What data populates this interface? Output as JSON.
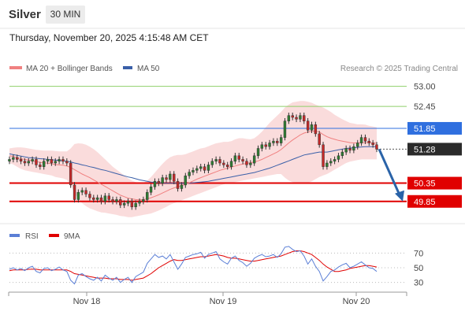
{
  "header": {
    "instrument": "Silver",
    "timeframe": "30 MIN",
    "timestamp": "Thursday, November 20, 2025 4:15:48 AM CET"
  },
  "legend": {
    "ma20_label": "MA 20 + Bollinger Bands",
    "ma50_label": "MA 50",
    "credit": "Research © 2025 Trading Central",
    "rsi_label": "RSI",
    "rsi_ma_label": "9MA"
  },
  "colors": {
    "ma20": "#f08080",
    "ma50": "#3a5fa8",
    "band_fill": "#fadcdc",
    "bull": "#2e7d32",
    "bear": "#c62828",
    "green_level": "#8fcf6a",
    "blue_level": "#2f6fdf",
    "red_level": "#e00000",
    "last_price": "#2b2b2b",
    "rsi": "#5b7fd6",
    "rsi_ma": "#e00000",
    "arrow": "#2a63a8"
  },
  "chart_data": {
    "type": "candlestick",
    "y_range": [
      49.5,
      53.25
    ],
    "x_axis": {
      "tick_labels": [
        "Nov 18",
        "Nov 19",
        "Nov 20"
      ]
    },
    "price_levels": [
      {
        "value": 53.0,
        "label": "53.00",
        "style": "green-line"
      },
      {
        "value": 52.45,
        "label": "52.45",
        "style": "green-line"
      },
      {
        "value": 51.85,
        "label": "51.85",
        "style": "blue-tag"
      },
      {
        "value": 51.28,
        "label": "51.28",
        "style": "last-price-tag"
      },
      {
        "value": 50.35,
        "label": "50.35",
        "style": "red-tag"
      },
      {
        "value": 49.85,
        "label": "49.85",
        "style": "red-tag"
      }
    ],
    "close_series": [
      51.0,
      51.05,
      51.0,
      50.95,
      50.9,
      50.95,
      51.0,
      50.85,
      50.8,
      50.95,
      51.0,
      50.9,
      50.95,
      51.0,
      50.95,
      50.9,
      50.3,
      49.9,
      50.1,
      50.15,
      50.05,
      49.95,
      49.9,
      49.95,
      49.85,
      50.0,
      49.9,
      49.85,
      49.9,
      49.75,
      49.8,
      49.85,
      49.7,
      49.8,
      49.85,
      49.9,
      50.1,
      50.25,
      50.4,
      50.35,
      50.5,
      50.45,
      50.6,
      50.4,
      50.2,
      50.3,
      50.55,
      50.65,
      50.7,
      50.75,
      50.8,
      50.7,
      50.85,
      50.95,
      51.0,
      50.9,
      50.85,
      50.8,
      50.95,
      51.1,
      51.0,
      50.95,
      50.85,
      50.9,
      51.1,
      51.3,
      51.4,
      51.35,
      51.45,
      51.5,
      51.45,
      51.6,
      52.05,
      52.2,
      52.15,
      52.1,
      52.2,
      52.05,
      51.8,
      51.95,
      51.7,
      51.4,
      50.8,
      50.9,
      50.95,
      51.0,
      51.1,
      51.2,
      51.3,
      51.25,
      51.35,
      51.45,
      51.6,
      51.5,
      51.45,
      51.4,
      51.28
    ],
    "ma20_series": [
      51.1,
      51.08,
      51.05,
      51.02,
      51.0,
      50.98,
      50.96,
      50.94,
      50.92,
      50.9,
      50.9,
      50.88,
      50.86,
      50.85,
      50.84,
      50.82,
      50.78,
      50.72,
      50.66,
      50.6,
      50.55,
      50.5,
      50.44,
      50.38,
      50.32,
      50.26,
      50.2,
      50.14,
      50.08,
      50.02,
      49.98,
      49.94,
      49.92,
      49.9,
      49.89,
      49.9,
      49.92,
      49.95,
      49.99,
      50.03,
      50.08,
      50.13,
      50.18,
      50.22,
      50.25,
      50.28,
      50.32,
      50.36,
      50.41,
      50.46,
      50.5,
      50.54,
      50.58,
      50.62,
      50.66,
      50.7,
      50.73,
      50.76,
      50.79,
      50.82,
      50.85,
      50.87,
      50.89,
      50.91,
      50.93,
      50.96,
      51.0,
      51.05,
      51.1,
      51.15,
      51.2,
      51.27,
      51.36,
      51.45,
      51.53,
      51.6,
      51.67,
      51.72,
      51.75,
      51.77,
      51.78,
      51.75,
      51.68,
      51.62,
      51.58,
      51.55,
      51.52,
      51.5,
      51.48,
      51.46,
      51.45,
      51.45,
      51.46,
      51.46,
      51.46,
      51.45,
      51.44
    ],
    "band_upper": [
      51.3,
      51.32,
      51.33,
      51.33,
      51.32,
      51.3,
      51.28,
      51.26,
      51.25,
      51.24,
      51.24,
      51.24,
      51.23,
      51.22,
      51.22,
      51.22,
      51.3,
      51.42,
      51.44,
      51.43,
      51.4,
      51.35,
      51.28,
      51.2,
      51.1,
      51.0,
      50.9,
      50.8,
      50.72,
      50.64,
      50.56,
      50.48,
      50.42,
      50.38,
      50.36,
      50.36,
      50.42,
      50.52,
      50.64,
      50.76,
      50.88,
      50.98,
      51.06,
      51.1,
      51.12,
      51.12,
      51.14,
      51.18,
      51.22,
      51.26,
      51.3,
      51.32,
      51.36,
      51.4,
      51.44,
      51.46,
      51.48,
      51.48,
      51.5,
      51.55,
      51.58,
      51.58,
      51.56,
      51.55,
      51.58,
      51.66,
      51.76,
      51.88,
      52.0,
      52.1,
      52.2,
      52.3,
      52.42,
      52.5,
      52.56,
      52.58,
      52.6,
      52.6,
      52.58,
      52.55,
      52.5,
      52.46,
      52.42,
      52.36,
      52.3,
      52.22,
      52.16,
      52.1,
      52.05,
      52.0,
      51.98,
      51.96,
      51.96,
      51.95,
      51.92,
      51.9,
      51.88
    ],
    "band_lower": [
      50.9,
      50.86,
      50.8,
      50.74,
      50.7,
      50.68,
      50.66,
      50.64,
      50.62,
      50.6,
      50.58,
      50.56,
      50.52,
      50.5,
      50.48,
      50.44,
      50.3,
      50.08,
      49.92,
      49.8,
      49.72,
      49.66,
      49.62,
      49.58,
      49.55,
      49.54,
      49.52,
      49.5,
      49.48,
      49.45,
      49.44,
      49.42,
      49.42,
      49.44,
      49.46,
      49.48,
      49.5,
      49.52,
      49.56,
      49.6,
      49.65,
      49.7,
      49.76,
      49.8,
      49.84,
      49.88,
      49.92,
      49.96,
      50.0,
      50.04,
      50.08,
      50.12,
      50.16,
      50.2,
      50.24,
      50.28,
      50.32,
      50.34,
      50.36,
      50.38,
      50.4,
      50.42,
      50.44,
      50.46,
      50.48,
      50.5,
      50.52,
      50.54,
      50.56,
      50.58,
      50.6,
      50.6,
      50.5,
      50.42,
      50.38,
      50.36,
      50.34,
      50.34,
      50.36,
      50.4,
      50.46,
      50.52,
      50.56,
      50.6,
      50.66,
      50.72,
      50.78,
      50.84,
      50.9,
      50.94,
      50.96,
      50.98,
      51.0,
      51.0,
      51.0,
      51.0,
      51.0
    ],
    "ma50_series": [
      51.15,
      51.13,
      51.11,
      51.09,
      51.07,
      51.05,
      51.04,
      51.03,
      51.02,
      51.01,
      51.0,
      50.99,
      50.98,
      50.97,
      50.96,
      50.95,
      50.93,
      50.9,
      50.88,
      50.85,
      50.83,
      50.8,
      50.78,
      50.75,
      50.72,
      50.7,
      50.67,
      50.64,
      50.61,
      50.58,
      50.55,
      50.52,
      50.5,
      50.47,
      50.44,
      50.42,
      50.4,
      50.38,
      50.37,
      50.36,
      50.35,
      50.35,
      50.35,
      50.35,
      50.35,
      50.35,
      50.35,
      50.35,
      50.36,
      50.37,
      50.38,
      50.39,
      50.4,
      50.42,
      50.44,
      50.46,
      50.48,
      50.5,
      50.52,
      50.54,
      50.56,
      50.58,
      50.6,
      50.62,
      50.64,
      50.67,
      50.7,
      50.73,
      50.76,
      50.8,
      50.84,
      50.88,
      50.92,
      50.96,
      51.0,
      51.04,
      51.08,
      51.12,
      51.14,
      51.16,
      51.18,
      51.2,
      51.2,
      51.2,
      51.22,
      51.24,
      51.26,
      51.28,
      51.3,
      51.31,
      51.32,
      51.33,
      51.34,
      51.35,
      51.35,
      51.35,
      51.35
    ],
    "forecast_arrow": {
      "from": 51.28,
      "to": 49.85
    },
    "rsi": {
      "range": [
        20,
        80
      ],
      "levels": [
        70,
        50,
        30
      ],
      "rsi_series": [
        48,
        50,
        47,
        49,
        46,
        50,
        52,
        45,
        43,
        49,
        50,
        46,
        48,
        51,
        47,
        45,
        33,
        28,
        40,
        42,
        38,
        35,
        33,
        37,
        32,
        40,
        36,
        33,
        37,
        30,
        34,
        37,
        30,
        38,
        41,
        44,
        56,
        62,
        68,
        64,
        66,
        62,
        68,
        58,
        48,
        55,
        64,
        66,
        68,
        69,
        71,
        63,
        68,
        70,
        72,
        62,
        58,
        55,
        63,
        66,
        60,
        57,
        52,
        56,
        63,
        66,
        68,
        65,
        66,
        68,
        64,
        69,
        78,
        79,
        75,
        72,
        73,
        66,
        55,
        62,
        52,
        45,
        32,
        38,
        45,
        47,
        51,
        54,
        56,
        50,
        52,
        55,
        58,
        54,
        50,
        49,
        45
      ],
      "ma_series": [
        46,
        47,
        47,
        47,
        47,
        48,
        48,
        48,
        47,
        47,
        47,
        47,
        47,
        47,
        47,
        47,
        45,
        42,
        41,
        40,
        39,
        38,
        37,
        36,
        36,
        36,
        35,
        35,
        35,
        34,
        34,
        34,
        33,
        34,
        35,
        36,
        39,
        42,
        46,
        50,
        53,
        56,
        59,
        61,
        60,
        60,
        61,
        62,
        63,
        64,
        65,
        65,
        66,
        67,
        68,
        67,
        66,
        64,
        63,
        63,
        62,
        61,
        60,
        59,
        59,
        60,
        61,
        62,
        63,
        64,
        65,
        66,
        68,
        70,
        72,
        73,
        73,
        72,
        70,
        68,
        64,
        60,
        55,
        51,
        48,
        45,
        45,
        46,
        47,
        49,
        50,
        51,
        52,
        53,
        53,
        52,
        51
      ]
    }
  }
}
